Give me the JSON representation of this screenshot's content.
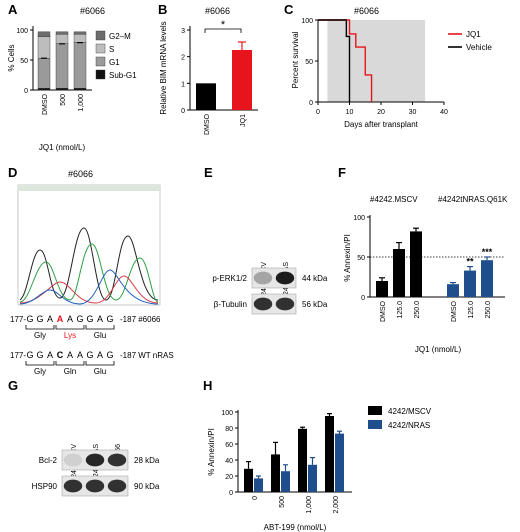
{
  "panels": {
    "A": {
      "letter": "A",
      "title": "#6066",
      "ylabel": "% Cells",
      "xlabel": "JQ1 (nmol/L)",
      "categories": [
        "DMSO",
        "500",
        "1,000"
      ],
      "yticks": [
        "0",
        "50",
        "100"
      ],
      "legend": [
        "G2–M",
        "S",
        "G1",
        "Sub-G1"
      ],
      "colors": [
        "#6d6d6d",
        "#bdbdbd",
        "#9a9a9a",
        "#111111"
      ]
    },
    "B": {
      "letter": "B",
      "title": "#6066",
      "ylabel": "Relative BIM mRNA levels",
      "categories": [
        "DMSO",
        "JQ1"
      ],
      "yticks": [
        "0",
        "1",
        "2",
        "3"
      ],
      "significance": "*",
      "colors": [
        "#000000",
        "#e8141c"
      ]
    },
    "C": {
      "letter": "C",
      "title": "#6066",
      "ylabel": "Percent survival",
      "xlabel": "Days after transplant",
      "xticks": [
        "0",
        "10",
        "20",
        "30",
        "40"
      ],
      "yticks": [
        "0",
        "50",
        "100"
      ],
      "legend": [
        "JQ1",
        "Vehicle"
      ],
      "colors": [
        "#e8141c",
        "#000000"
      ],
      "shade": "#d9d9d9"
    },
    "D": {
      "letter": "D",
      "title": "#6066",
      "row1": {
        "start": "177-",
        "seq": [
          "G",
          "G",
          "A",
          "A",
          "A",
          "G",
          "G",
          "A",
          "G"
        ],
        "end": "-187 #6066",
        "aa": [
          "Gly",
          "Lys",
          "Glu"
        ]
      },
      "row2": {
        "start": "177-",
        "seq": [
          "G",
          "G",
          "A",
          "C",
          "A",
          "A",
          "G",
          "A",
          "G"
        ],
        "end": "-187 WT nRAS",
        "aa": [
          "Gly",
          "Gln",
          "Glu"
        ]
      },
      "mut_color": "#e8141c"
    },
    "E": {
      "letter": "E",
      "lanes": [
        "4242/MSCV",
        "4242/NRAS"
      ],
      "rows": [
        {
          "label": "p-ERK1/2",
          "kda": "44 kDa"
        },
        {
          "label": "β-Tubulin",
          "kda": "56 kDa"
        }
      ]
    },
    "F": {
      "letter": "F",
      "group_titles": [
        "#4242.MSCV",
        "#4242tNRAS.Q61K"
      ],
      "ylabel": "% Annexin/PI",
      "xlabel": "JQ1 (nmol/L)",
      "yticks": [
        "0",
        "50",
        "100"
      ],
      "categories": [
        "DMSO",
        "125.0",
        "250.0",
        "DMSO",
        "125.0",
        "250.0"
      ],
      "significance": [
        "",
        "",
        "",
        "",
        "**",
        "***"
      ],
      "colors": [
        "#000000",
        "#1f4e8c"
      ]
    },
    "G": {
      "letter": "G",
      "lanes": [
        "4242/MSCV",
        "4242/NRAS",
        "6066"
      ],
      "rows": [
        {
          "label": "Bcl-2",
          "kda": "28 kDa"
        },
        {
          "label": "HSP90",
          "kda": "90 kDa"
        }
      ]
    },
    "H": {
      "letter": "H",
      "ylabel": "% Annexin/PI",
      "xlabel": "ABT-199 (nmol/L)",
      "yticks": [
        "0",
        "20",
        "40",
        "60",
        "80",
        "100"
      ],
      "legend": [
        "4242/MSCV",
        "4242/NRAS"
      ],
      "colors": [
        "#000000",
        "#1f4e8c"
      ]
    }
  },
  "chart_data": [
    {
      "type": "bar",
      "panel": "A",
      "title": "#6066",
      "ylabel": "% Cells",
      "xlabel": "JQ1 (nmol/L)",
      "stacked": true,
      "categories": [
        "DMSO",
        "500",
        "1,000"
      ],
      "ylim": [
        0,
        100
      ],
      "series": [
        {
          "name": "Sub-G1",
          "values": [
            3,
            3,
            3
          ]
        },
        {
          "name": "G1",
          "values": [
            50,
            74,
            76
          ]
        },
        {
          "name": "S",
          "values": [
            36,
            16,
            14
          ]
        },
        {
          "name": "G2–M",
          "values": [
            8,
            4,
            4
          ]
        }
      ],
      "legend_position": "right"
    },
    {
      "type": "bar",
      "panel": "B",
      "title": "#6066",
      "ylabel": "Relative BIM mRNA levels",
      "categories": [
        "DMSO",
        "JQ1"
      ],
      "values": [
        1.0,
        2.25
      ],
      "errors": [
        0,
        0.3
      ],
      "ylim": [
        0,
        3
      ]
    },
    {
      "type": "line",
      "panel": "C",
      "title": "#6066",
      "ylabel": "Percent survival",
      "xlabel": "Days after transplant",
      "xlim": [
        0,
        40
      ],
      "ylim": [
        0,
        100
      ],
      "series": [
        {
          "name": "JQ1",
          "x": [
            0,
            10,
            10,
            12,
            12,
            15,
            15,
            17,
            17
          ],
          "y": [
            100,
            100,
            83,
            83,
            67,
            67,
            33,
            33,
            0
          ]
        },
        {
          "name": "Vehicle",
          "x": [
            0,
            9,
            9,
            10,
            10
          ],
          "y": [
            100,
            100,
            80,
            80,
            0
          ]
        }
      ],
      "shaded_x": [
        3,
        34
      ],
      "legend_position": "top-right"
    },
    {
      "type": "bar",
      "panel": "F",
      "ylabel": "% Annexin/PI",
      "xlabel": "JQ1 (nmol/L)",
      "categories": [
        "DMSO",
        "125.0",
        "250.0",
        "DMSO",
        "125.0",
        "250.0"
      ],
      "values": [
        20,
        60,
        82,
        16,
        33,
        46
      ],
      "errors": [
        4,
        8,
        4,
        2,
        5,
        4
      ],
      "groups": [
        "#4242.MSCV",
        "#4242.MSCV",
        "#4242.MSCV",
        "#4242tNRAS.Q61K",
        "#4242tNRAS.Q61K",
        "#4242tNRAS.Q61K"
      ],
      "reference_line": 50,
      "ylim": [
        0,
        100
      ]
    },
    {
      "type": "bar",
      "panel": "H",
      "ylabel": "% Annexin/PI",
      "xlabel": "ABT-199 (nmol/L)",
      "categories": [
        "0",
        "500",
        "1,000",
        "2,000"
      ],
      "series": [
        {
          "name": "4242/MSCV",
          "values": [
            29,
            47,
            79,
            95
          ],
          "errors": [
            9,
            15,
            2,
            3
          ]
        },
        {
          "name": "4242/NRAS",
          "values": [
            17,
            26,
            34,
            73
          ],
          "errors": [
            3,
            8,
            9,
            3
          ]
        }
      ],
      "ylim": [
        0,
        100
      ],
      "legend_position": "top-right"
    }
  ]
}
